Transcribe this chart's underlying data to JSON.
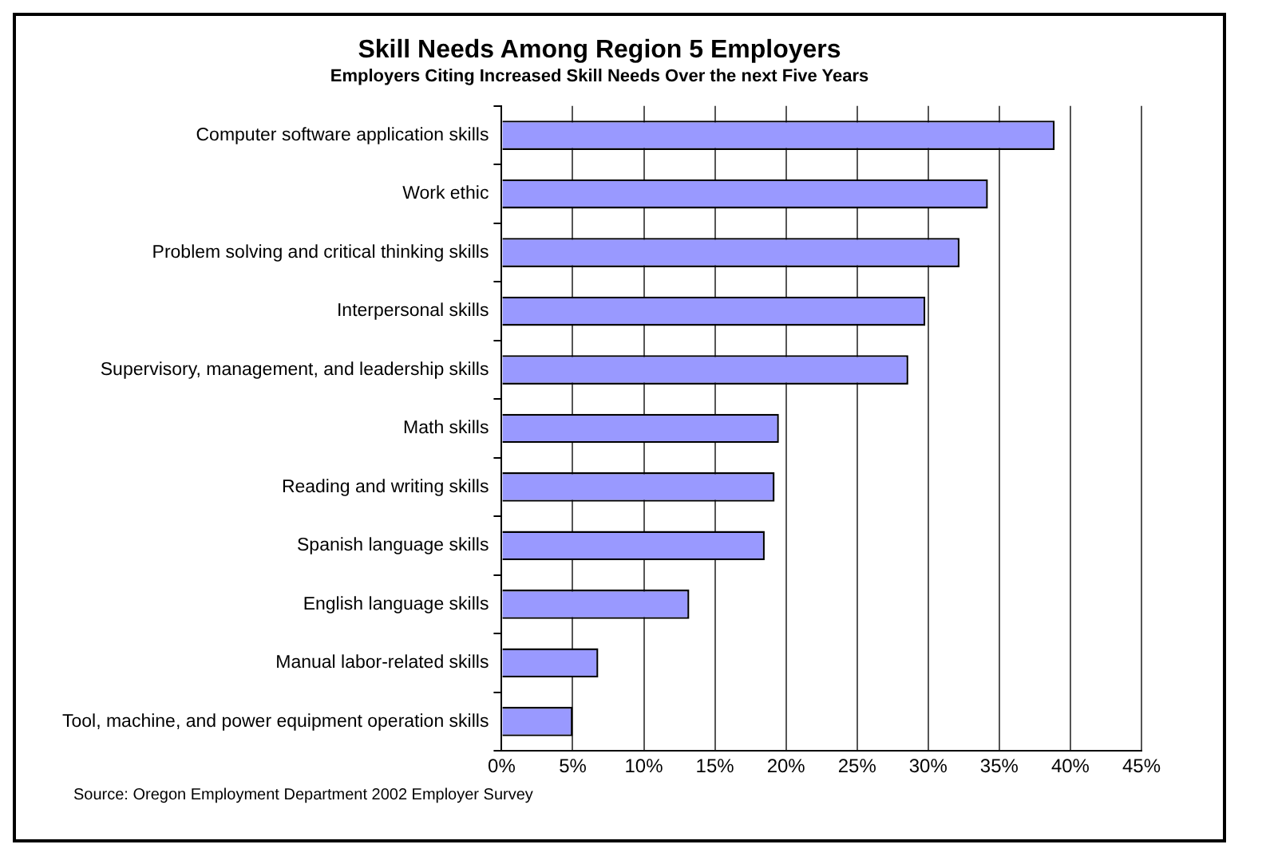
{
  "chart_data": {
    "type": "bar",
    "orientation": "horizontal",
    "title": "Skill Needs Among Region 5 Employers",
    "subtitle": "Employers Citing Increased Skill Needs Over the next Five Years",
    "categories": [
      "Computer software application skills",
      "Work ethic",
      "Problem solving and critical thinking skills",
      "Interpersonal skills",
      "Supervisory, management, and leadership skills",
      "Math skills",
      "Reading and writing skills",
      "Spanish language skills",
      "English language skills",
      "Manual labor-related skills",
      "Tool, machine, and power equipment operation skills"
    ],
    "values": [
      38.9,
      34.2,
      32.2,
      29.8,
      28.6,
      19.5,
      19.2,
      18.5,
      13.2,
      6.8,
      5.0
    ],
    "color": "#9999ff",
    "xlim": [
      0,
      45
    ],
    "xticks": [
      {
        "value": 0,
        "label": "0%"
      },
      {
        "value": 5,
        "label": "5%"
      },
      {
        "value": 10,
        "label": "10%"
      },
      {
        "value": 15,
        "label": "15%"
      },
      {
        "value": 20,
        "label": "20%"
      },
      {
        "value": 25,
        "label": "25%"
      },
      {
        "value": 30,
        "label": "30%"
      },
      {
        "value": 35,
        "label": "35%"
      },
      {
        "value": 40,
        "label": "40%"
      },
      {
        "value": 45,
        "label": "45%"
      }
    ],
    "grid": "x",
    "legend": false,
    "annotations": [
      "Source: Oregon Employment Department 2002 Employer Survey"
    ]
  }
}
